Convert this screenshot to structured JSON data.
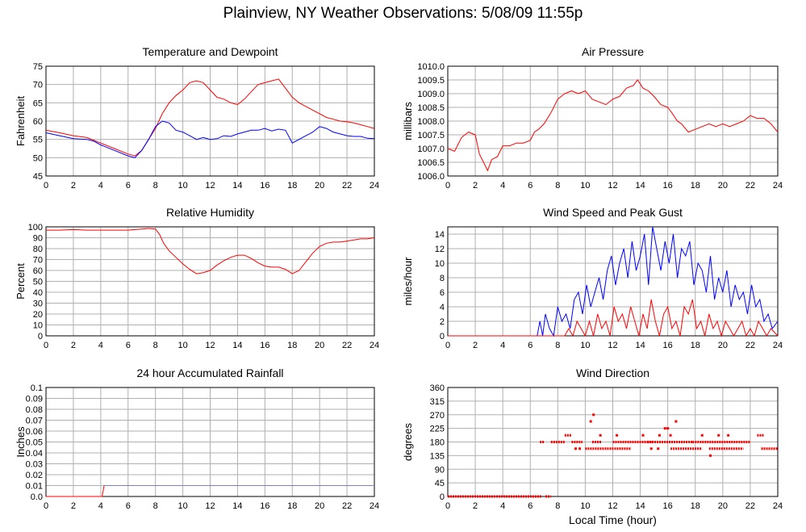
{
  "page": {
    "title": "Plainview, NY Weather Observations: 5/08/09 11:55p"
  },
  "chart_data": [
    {
      "type": "line",
      "title": "Temperature and Dewpoint",
      "ylabel": "Fahrenheit",
      "xlabel": "",
      "xlim": [
        0,
        24
      ],
      "ylim": [
        45,
        75
      ],
      "x_ticks": [
        "0",
        "2",
        "4",
        "6",
        "8",
        "10",
        "12",
        "14",
        "16",
        "18",
        "20",
        "22",
        "24"
      ],
      "y_ticks": [
        "45",
        "50",
        "55",
        "60",
        "65",
        "70",
        "75"
      ],
      "grid": true,
      "series": [
        {
          "color": "#ff0000",
          "x": [
            0,
            1,
            2,
            3,
            4,
            5,
            6,
            6.5,
            7,
            7.5,
            8,
            8.5,
            9,
            9.5,
            10,
            10.5,
            11,
            11.5,
            12,
            12.5,
            13,
            13.5,
            14,
            14.5,
            15,
            15.5,
            16,
            16.5,
            17,
            17.5,
            18,
            18.5,
            19,
            19.5,
            20,
            20.5,
            21,
            21.5,
            22,
            22.5,
            23,
            23.5,
            24
          ],
          "y": [
            57.5,
            56.8,
            56,
            55.5,
            54,
            52.5,
            51,
            50.5,
            52,
            55,
            58,
            62,
            65,
            67,
            68.5,
            70.5,
            71,
            70.5,
            68.5,
            66.5,
            66,
            65,
            64.5,
            66,
            68,
            70,
            70.5,
            71,
            71.5,
            69,
            66.5,
            65,
            64,
            63,
            62,
            61,
            60.5,
            60,
            59.8,
            59.5,
            59,
            58.5,
            58
          ]
        },
        {
          "color": "#0000ff",
          "x": [
            0,
            1,
            2,
            3,
            3.5,
            4,
            5,
            6,
            6.5,
            7,
            7.5,
            8,
            8.5,
            9,
            9.5,
            10,
            10.5,
            11,
            11.5,
            12,
            12.5,
            13,
            13.5,
            14,
            14.5,
            15,
            15.5,
            16,
            16.5,
            17,
            17.5,
            18,
            18.5,
            19,
            19.5,
            20,
            20.5,
            21,
            21.5,
            22,
            22.5,
            23,
            23.5,
            24
          ],
          "y": [
            56.8,
            56,
            55.2,
            55,
            54.5,
            53.5,
            52,
            50.5,
            50,
            52,
            55,
            58.5,
            60,
            59.5,
            57.5,
            57,
            56,
            55,
            55.5,
            55,
            55.2,
            56,
            55.8,
            56.5,
            57,
            57.5,
            57.5,
            58,
            57.3,
            57.8,
            57.5,
            54,
            55,
            56,
            57,
            58.5,
            58,
            57,
            56.5,
            56,
            55.8,
            55.8,
            55.3,
            55.2
          ]
        }
      ]
    },
    {
      "type": "line",
      "title": "Air Pressure",
      "ylabel": "millibars",
      "xlabel": "",
      "xlim": [
        0,
        24
      ],
      "ylim": [
        1006.0,
        1010.0
      ],
      "x_ticks": [
        "0",
        "2",
        "4",
        "6",
        "8",
        "10",
        "12",
        "14",
        "16",
        "18",
        "20",
        "22",
        "24"
      ],
      "y_ticks": [
        "1006.0",
        "1006.5",
        "1007.0",
        "1007.5",
        "1008.0",
        "1008.5",
        "1009.0",
        "1009.5",
        "1010.0"
      ],
      "grid": true,
      "series": [
        {
          "color": "#ff0000",
          "x": [
            0,
            0.5,
            1,
            1.5,
            2,
            2.3,
            2.6,
            2.9,
            3.2,
            3.6,
            4,
            4.5,
            5,
            5.5,
            6,
            6.3,
            6.6,
            7,
            7.5,
            8,
            8.5,
            9,
            9.5,
            10,
            10.5,
            11,
            11.5,
            12,
            12.5,
            13,
            13.5,
            13.8,
            14.2,
            14.6,
            15,
            15.5,
            16,
            16.3,
            16.7,
            17,
            17.5,
            18,
            18.5,
            19,
            19.5,
            20,
            20.5,
            21,
            21.5,
            22,
            22.5,
            23,
            23.5,
            24
          ],
          "y": [
            1007.0,
            1006.9,
            1007.4,
            1007.6,
            1007.5,
            1006.8,
            1006.5,
            1006.2,
            1006.6,
            1006.7,
            1007.1,
            1007.1,
            1007.2,
            1007.2,
            1007.3,
            1007.6,
            1007.7,
            1007.9,
            1008.3,
            1008.8,
            1009.0,
            1009.1,
            1009.0,
            1009.1,
            1008.8,
            1008.7,
            1008.6,
            1008.8,
            1008.9,
            1009.2,
            1009.3,
            1009.5,
            1009.2,
            1009.1,
            1008.9,
            1008.6,
            1008.5,
            1008.3,
            1008.0,
            1007.9,
            1007.6,
            1007.7,
            1007.8,
            1007.9,
            1007.8,
            1007.9,
            1007.8,
            1007.9,
            1008.0,
            1008.2,
            1008.1,
            1008.1,
            1007.9,
            1007.6
          ]
        }
      ]
    },
    {
      "type": "line",
      "title": "Relative Humidity",
      "ylabel": "Percent",
      "xlabel": "",
      "xlim": [
        0,
        24
      ],
      "ylim": [
        0,
        100
      ],
      "x_ticks": [
        "0",
        "2",
        "4",
        "6",
        "8",
        "10",
        "12",
        "14",
        "16",
        "18",
        "20",
        "22",
        "24"
      ],
      "y_ticks": [
        "0",
        "10",
        "20",
        "30",
        "40",
        "50",
        "60",
        "70",
        "80",
        "90",
        "100"
      ],
      "grid": true,
      "series": [
        {
          "color": "#ff0000",
          "x": [
            0,
            1,
            2,
            3,
            4,
            5,
            6,
            6.5,
            7,
            7.5,
            8,
            8.3,
            8.6,
            9,
            9.5,
            10,
            10.5,
            11,
            11.5,
            12,
            12.5,
            13,
            13.5,
            14,
            14.5,
            15,
            15.5,
            16,
            16.5,
            17,
            17.5,
            18,
            18.5,
            19,
            19.5,
            20,
            20.5,
            21,
            21.5,
            22,
            22.5,
            23,
            23.5,
            24
          ],
          "y": [
            97,
            97,
            97.5,
            97,
            97,
            97,
            97,
            97.5,
            98,
            98.5,
            98,
            93,
            85,
            78,
            72,
            66,
            61,
            57,
            58,
            60,
            65,
            69,
            72,
            74,
            74,
            71,
            67,
            64,
            63,
            63,
            61,
            57,
            60,
            68,
            76,
            82,
            85,
            86,
            86,
            87,
            88,
            89,
            89,
            90
          ]
        }
      ]
    },
    {
      "type": "line",
      "title": "Wind Speed and Peak Gust",
      "ylabel": "miles/hour",
      "xlabel": "",
      "xlim": [
        0,
        24
      ],
      "ylim": [
        0,
        15
      ],
      "x_ticks": [
        "0",
        "2",
        "4",
        "6",
        "8",
        "10",
        "12",
        "14",
        "16",
        "18",
        "20",
        "22",
        "24"
      ],
      "y_ticks": [
        "0",
        "2",
        "4",
        "6",
        "8",
        "10",
        "12",
        "14"
      ],
      "grid": true,
      "series": [
        {
          "color": "#0000ff",
          "x": [
            0,
            6.5,
            6.7,
            6.9,
            7.1,
            7.4,
            7.7,
            8,
            8.3,
            8.6,
            8.9,
            9.2,
            9.5,
            9.8,
            10.1,
            10.4,
            10.7,
            11,
            11.3,
            11.6,
            11.9,
            12.2,
            12.5,
            12.8,
            13.1,
            13.4,
            13.7,
            14,
            14.3,
            14.6,
            14.9,
            15.2,
            15.5,
            15.8,
            16.1,
            16.4,
            16.7,
            17,
            17.3,
            17.6,
            17.9,
            18.2,
            18.5,
            18.8,
            19.1,
            19.4,
            19.7,
            20,
            20.3,
            20.6,
            20.9,
            21.2,
            21.5,
            21.8,
            22.1,
            22.4,
            22.7,
            23,
            23.3,
            23.6,
            24
          ],
          "y": [
            0,
            0,
            2,
            0,
            3,
            1,
            0,
            4,
            2,
            3,
            1,
            5,
            6,
            3,
            7,
            4,
            6,
            8,
            5,
            9,
            11,
            7,
            10,
            12,
            8,
            13,
            9,
            11,
            14,
            7,
            15,
            12,
            9,
            13,
            10,
            14,
            8,
            12,
            11,
            13,
            7,
            10,
            9,
            6,
            11,
            5,
            8,
            6,
            9,
            4,
            7,
            5,
            6,
            3,
            7,
            4,
            5,
            2,
            3,
            1,
            2
          ]
        },
        {
          "color": "#ff0000",
          "x": [
            0,
            8.5,
            8.8,
            9.1,
            9.4,
            9.7,
            10,
            10.3,
            10.6,
            10.9,
            11.2,
            11.5,
            11.8,
            12.1,
            12.4,
            12.7,
            13,
            13.3,
            13.6,
            13.9,
            14.2,
            14.5,
            14.8,
            15.1,
            15.4,
            15.7,
            16,
            16.3,
            16.6,
            16.9,
            17.2,
            17.5,
            17.8,
            18.1,
            18.4,
            18.7,
            19,
            19.3,
            19.6,
            19.9,
            20.2,
            20.5,
            20.8,
            21.1,
            21.4,
            21.7,
            22,
            22.3,
            22.6,
            22.9,
            23.2,
            23.5,
            24
          ],
          "y": [
            0,
            0,
            1,
            0,
            2,
            1,
            0,
            2,
            0,
            3,
            1,
            2,
            0,
            4,
            2,
            3,
            1,
            4,
            2,
            0,
            3,
            1,
            5,
            2,
            0,
            3,
            4,
            1,
            2,
            0,
            4,
            3,
            5,
            1,
            2,
            0,
            3,
            1,
            2,
            0,
            2,
            1,
            0,
            1,
            2,
            0,
            1,
            0,
            2,
            1,
            0,
            1,
            0
          ]
        }
      ]
    },
    {
      "type": "line",
      "title": "24 hour Accumulated Rainfall",
      "ylabel": "Inches",
      "xlabel": "",
      "xlim": [
        0,
        24
      ],
      "ylim": [
        0,
        0.1
      ],
      "x_ticks": [
        "0",
        "2",
        "4",
        "6",
        "8",
        "10",
        "12",
        "14",
        "16",
        "18",
        "20",
        "22",
        "24"
      ],
      "y_ticks": [
        "0.0",
        "0.01",
        "0.02",
        "0.03",
        "0.04",
        "0.05",
        "0.06",
        "0.07",
        "0.08",
        "0.09",
        "0.1"
      ],
      "grid": true,
      "series": [
        {
          "color": "#ff0000",
          "x": [
            0,
            4.1,
            4.25,
            24
          ],
          "y": [
            0,
            0,
            0.01,
            0.01
          ]
        },
        {
          "color": "#8080c0",
          "x": [
            4.25,
            24
          ],
          "y": [
            0.01,
            0.01
          ]
        }
      ]
    },
    {
      "type": "scatter",
      "title": "Wind Direction",
      "ylabel": "degrees",
      "xlabel": "Local Time (hour)",
      "xlim": [
        0,
        24
      ],
      "ylim": [
        0,
        360
      ],
      "x_ticks": [
        "0",
        "2",
        "4",
        "6",
        "8",
        "10",
        "12",
        "14",
        "16",
        "18",
        "20",
        "22",
        "24"
      ],
      "y_ticks": [
        "0",
        "45",
        "90",
        "135",
        "180",
        "225",
        "270",
        "315",
        "360"
      ],
      "grid": true,
      "series": [
        {
          "color": "#ff0000",
          "segments": [
            {
              "x0": 0,
              "x1": 6.8,
              "y": 0
            },
            {
              "x0": 7.1,
              "x1": 7.5,
              "y": 0
            },
            {
              "x0": 6.7,
              "x1": 7.0,
              "y": 180
            },
            {
              "x0": 7.5,
              "x1": 8.5,
              "y": 180
            },
            {
              "x0": 8.5,
              "x1": 9.0,
              "y": 202
            },
            {
              "x0": 9.0,
              "x1": 9.8,
              "y": 180
            },
            {
              "x0": 10.0,
              "x1": 13.3,
              "y": 158
            },
            {
              "x0": 10.5,
              "x1": 11.2,
              "y": 180
            },
            {
              "x0": 12.0,
              "x1": 15.0,
              "y": 180
            },
            {
              "x0": 14.5,
              "x1": 17.8,
              "y": 180
            },
            {
              "x0": 16.2,
              "x1": 18.5,
              "y": 158
            },
            {
              "x0": 17.8,
              "x1": 22.0,
              "y": 180
            },
            {
              "x0": 19.0,
              "x1": 21.5,
              "y": 158
            },
            {
              "x0": 22.5,
              "x1": 23.0,
              "y": 202
            },
            {
              "x0": 22.8,
              "x1": 24.0,
              "y": 158
            }
          ],
          "points": [
            {
              "x": 10.6,
              "y": 270
            },
            {
              "x": 10.4,
              "y": 248
            },
            {
              "x": 16.6,
              "y": 248
            },
            {
              "x": 15.8,
              "y": 225
            },
            {
              "x": 16.0,
              "y": 225
            },
            {
              "x": 19.1,
              "y": 135
            },
            {
              "x": 11.1,
              "y": 202
            },
            {
              "x": 12.3,
              "y": 202
            },
            {
              "x": 14.2,
              "y": 202
            },
            {
              "x": 15.4,
              "y": 202
            },
            {
              "x": 16.2,
              "y": 202
            },
            {
              "x": 18.5,
              "y": 202
            },
            {
              "x": 19.7,
              "y": 202
            },
            {
              "x": 20.4,
              "y": 202
            },
            {
              "x": 9.3,
              "y": 158
            },
            {
              "x": 9.6,
              "y": 158
            },
            {
              "x": 14.8,
              "y": 158
            },
            {
              "x": 15.3,
              "y": 158
            }
          ]
        }
      ]
    }
  ]
}
